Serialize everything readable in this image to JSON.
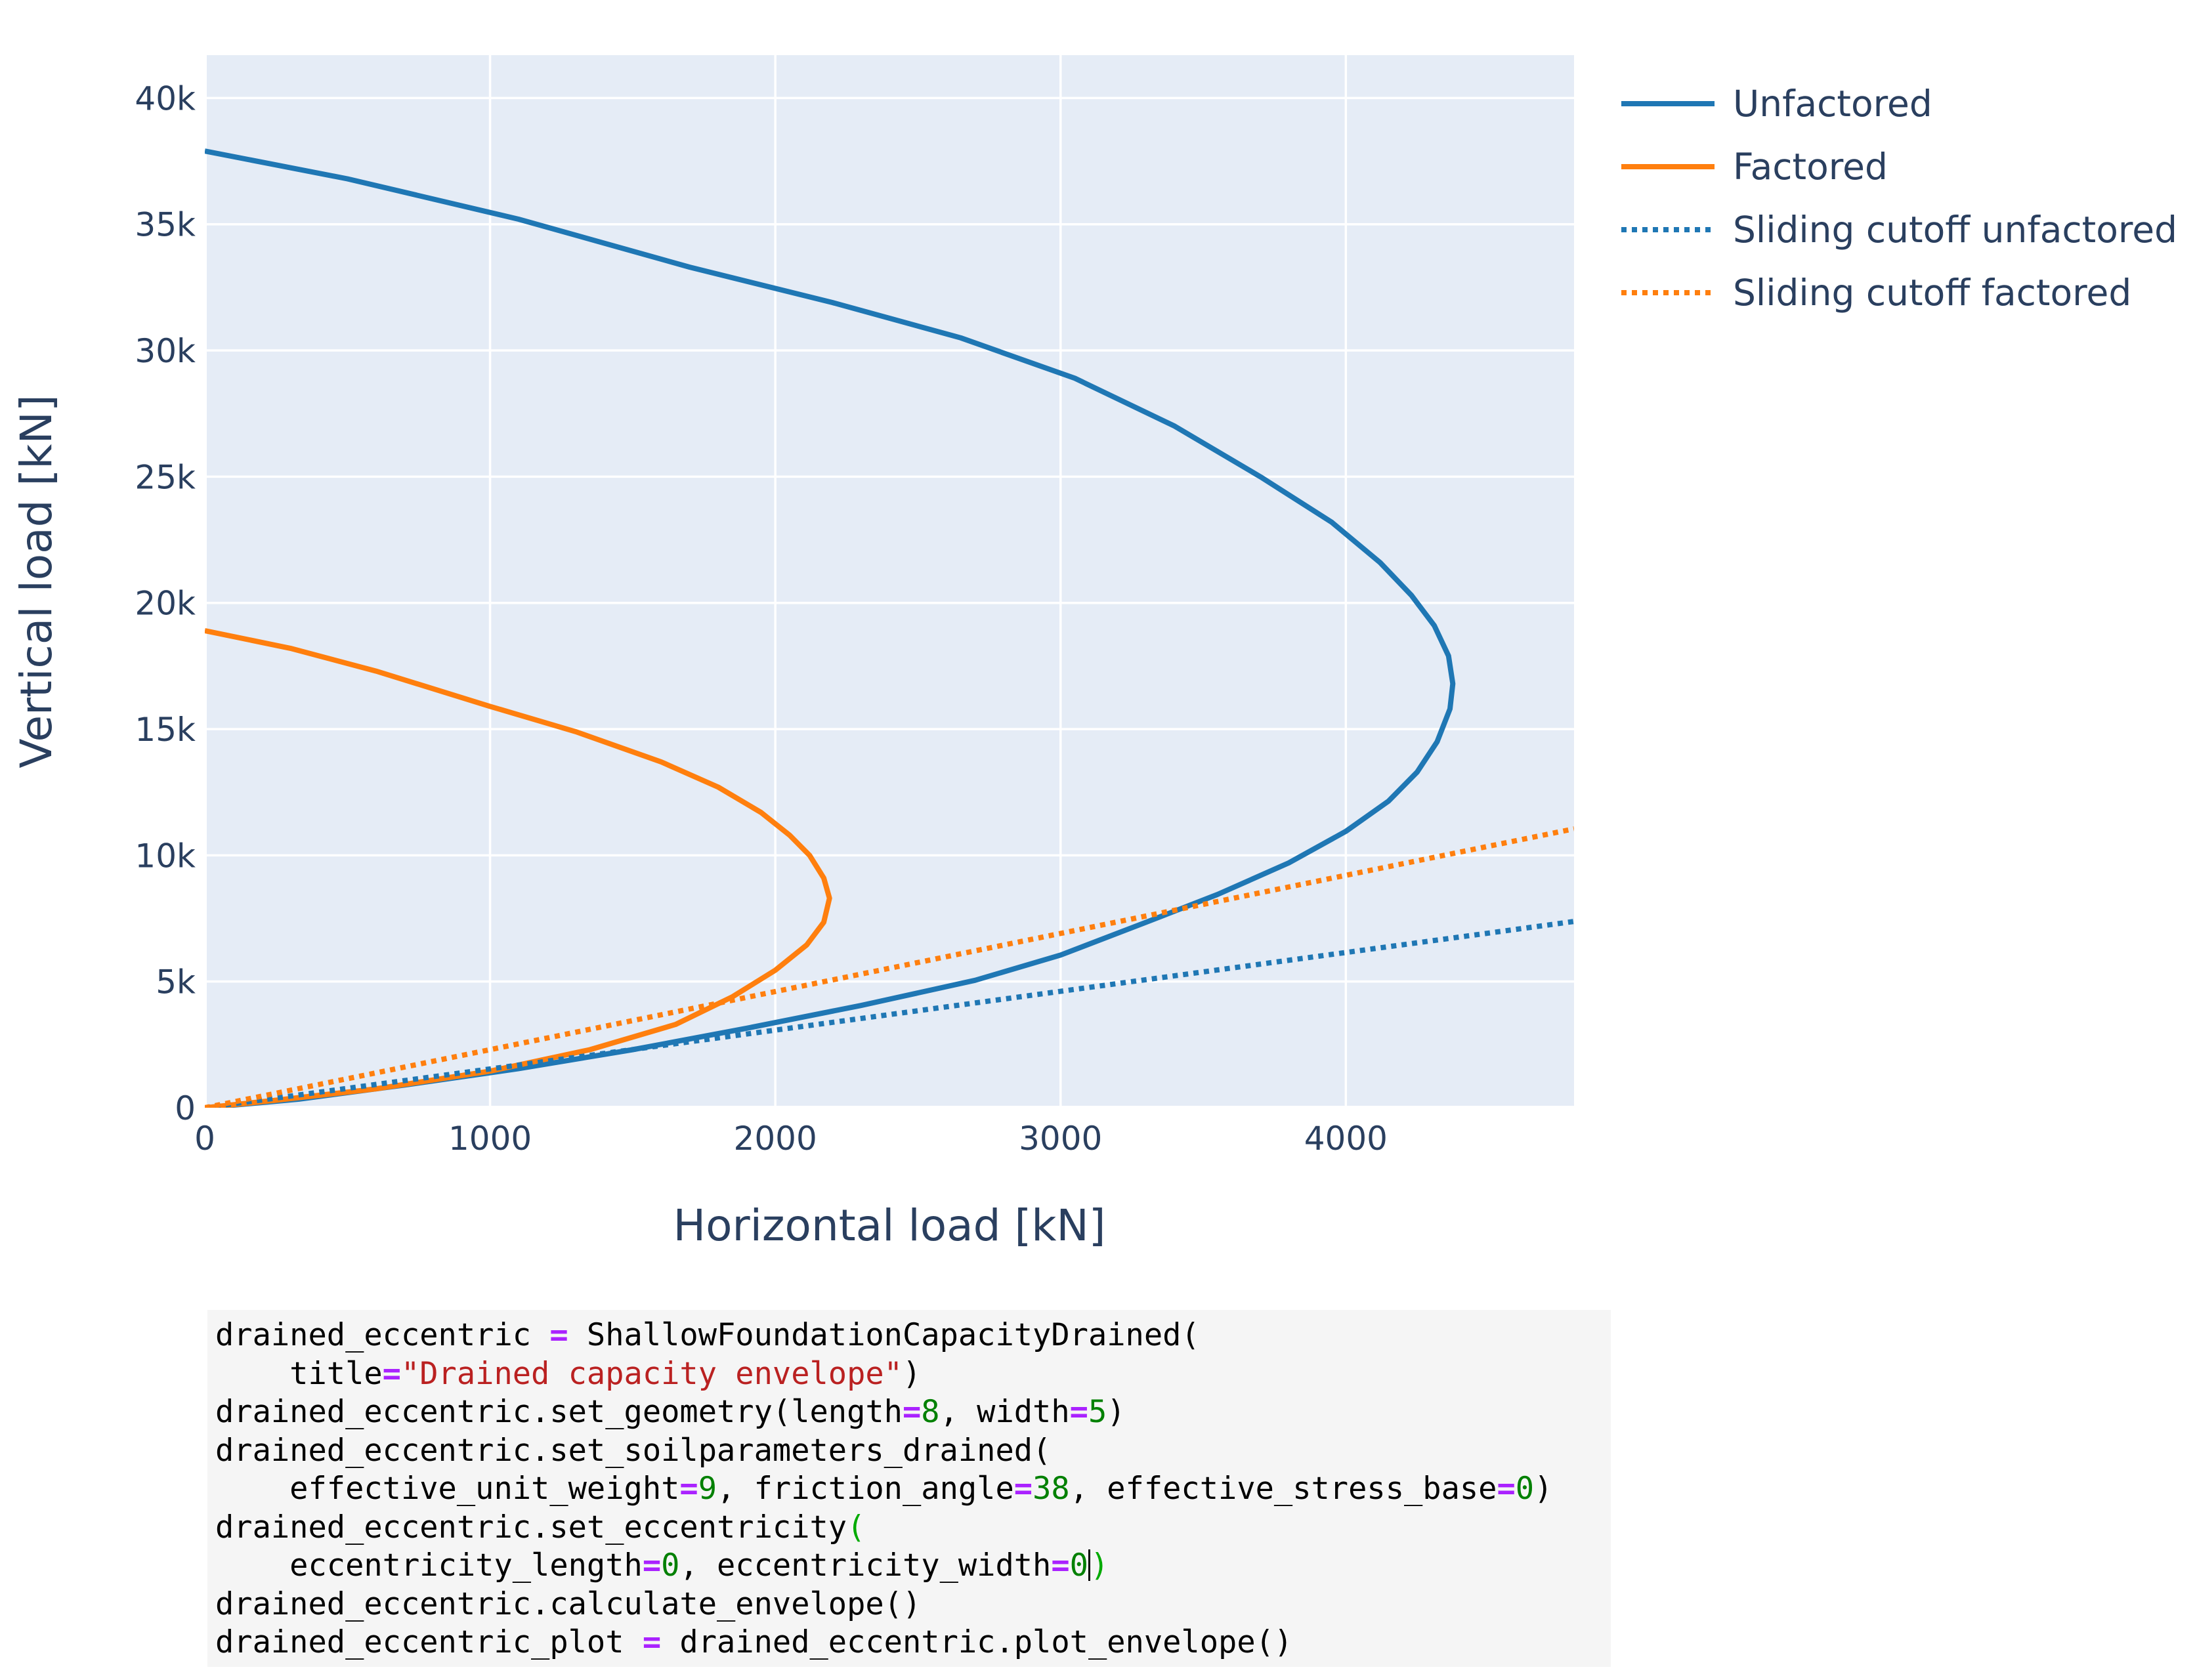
{
  "chart_data": {
    "type": "line",
    "title": "",
    "xlabel": "Horizontal load [kN]",
    "ylabel": "Vertical load [kN]",
    "xlim": [
      0,
      4800
    ],
    "ylim": [
      0,
      41700
    ],
    "xticks": [
      0,
      1000,
      2000,
      3000,
      4000
    ],
    "xtick_labels": [
      "0",
      "1000",
      "2000",
      "3000",
      "4000"
    ],
    "yticks": [
      0,
      5000,
      10000,
      15000,
      20000,
      25000,
      30000,
      35000,
      40000
    ],
    "ytick_labels": [
      "0",
      "5k",
      "10k",
      "15k",
      "20k",
      "25k",
      "30k",
      "35k",
      "40k"
    ],
    "grid": true,
    "legend_position": "right",
    "plot_background": "#e5ecf6",
    "series": [
      {
        "name": "Unfactored",
        "color": "#1f77b4",
        "dash": "solid",
        "points": [
          [
            0,
            0
          ],
          [
            330,
            340
          ],
          [
            700,
            900
          ],
          [
            1100,
            1550
          ],
          [
            1500,
            2300
          ],
          [
            1900,
            3150
          ],
          [
            2300,
            4050
          ],
          [
            2700,
            5050
          ],
          [
            3000,
            6050
          ],
          [
            3300,
            7350
          ],
          [
            3550,
            8450
          ],
          [
            3800,
            9700
          ],
          [
            4000,
            10950
          ],
          [
            4150,
            12150
          ],
          [
            4250,
            13300
          ],
          [
            4320,
            14500
          ],
          [
            4365,
            15800
          ],
          [
            4375,
            16800
          ],
          [
            4360,
            17900
          ],
          [
            4310,
            19100
          ],
          [
            4230,
            20300
          ],
          [
            4120,
            21600
          ],
          [
            3950,
            23200
          ],
          [
            3700,
            25000
          ],
          [
            3400,
            27000
          ],
          [
            3050,
            28900
          ],
          [
            2650,
            30500
          ],
          [
            2200,
            31900
          ],
          [
            1700,
            33300
          ],
          [
            1100,
            35200
          ],
          [
            500,
            36800
          ],
          [
            0,
            37900
          ]
        ]
      },
      {
        "name": "Factored",
        "color": "#ff7f0e",
        "dash": "solid",
        "points": [
          [
            0,
            0
          ],
          [
            250,
            300
          ],
          [
            600,
            750
          ],
          [
            1000,
            1450
          ],
          [
            1350,
            2300
          ],
          [
            1650,
            3300
          ],
          [
            1850,
            4400
          ],
          [
            2000,
            5450
          ],
          [
            2110,
            6450
          ],
          [
            2170,
            7350
          ],
          [
            2190,
            8300
          ],
          [
            2170,
            9100
          ],
          [
            2120,
            10000
          ],
          [
            2050,
            10800
          ],
          [
            1950,
            11700
          ],
          [
            1800,
            12700
          ],
          [
            1600,
            13700
          ],
          [
            1300,
            14900
          ],
          [
            1000,
            15900
          ],
          [
            600,
            17300
          ],
          [
            300,
            18200
          ],
          [
            0,
            18900
          ]
        ]
      },
      {
        "name": "Sliding cutoff unfactored",
        "color": "#1f77b4",
        "dash": "dot",
        "points": [
          [
            0,
            0
          ],
          [
            4800,
            7380
          ]
        ]
      },
      {
        "name": "Sliding cutoff factored",
        "color": "#ff7f0e",
        "dash": "dot",
        "points": [
          [
            0,
            0
          ],
          [
            4800,
            11050
          ]
        ]
      }
    ]
  },
  "code_cell": {
    "lines": [
      [
        [
          "drained_eccentric ",
          "plain"
        ],
        [
          "=",
          "op"
        ],
        [
          " ShallowFoundationCapacityDrained(",
          "plain"
        ]
      ],
      [
        [
          "    title",
          "plain"
        ],
        [
          "=",
          "op"
        ],
        [
          "\"Drained capacity envelope\"",
          "str"
        ],
        [
          ")",
          "plain"
        ]
      ],
      [
        [
          "drained_eccentric.set_geometry(length",
          "plain"
        ],
        [
          "=",
          "op"
        ],
        [
          "8",
          "num"
        ],
        [
          ", width",
          "plain"
        ],
        [
          "=",
          "op"
        ],
        [
          "5",
          "num"
        ],
        [
          ")",
          "plain"
        ]
      ],
      [
        [
          "drained_eccentric.set_soilparameters_drained(",
          "plain"
        ]
      ],
      [
        [
          "    effective_unit_weight",
          "plain"
        ],
        [
          "=",
          "op"
        ],
        [
          "9",
          "num"
        ],
        [
          ", friction_angle",
          "plain"
        ],
        [
          "=",
          "op"
        ],
        [
          "38",
          "num"
        ],
        [
          ", effective_stress_base",
          "plain"
        ],
        [
          "=",
          "op"
        ],
        [
          "0",
          "num"
        ],
        [
          ")",
          "plain"
        ]
      ],
      [
        [
          "drained_eccentric.set_eccentricity",
          "plain"
        ],
        [
          "(",
          "paren"
        ]
      ],
      [
        [
          "    eccentricity_length",
          "plain"
        ],
        [
          "=",
          "op"
        ],
        [
          "0",
          "num"
        ],
        [
          ", eccentricity_width",
          "plain"
        ],
        [
          "=",
          "op"
        ],
        [
          "0",
          "num"
        ],
        [
          "",
          "cursor"
        ],
        [
          ")",
          "paren"
        ]
      ],
      [
        [
          "drained_eccentric.calculate_envelope()",
          "plain"
        ]
      ],
      [
        [
          "drained_eccentric_plot ",
          "plain"
        ],
        [
          "=",
          "op"
        ],
        [
          " drained_eccentric.plot_envelope()",
          "plain"
        ]
      ]
    ]
  }
}
